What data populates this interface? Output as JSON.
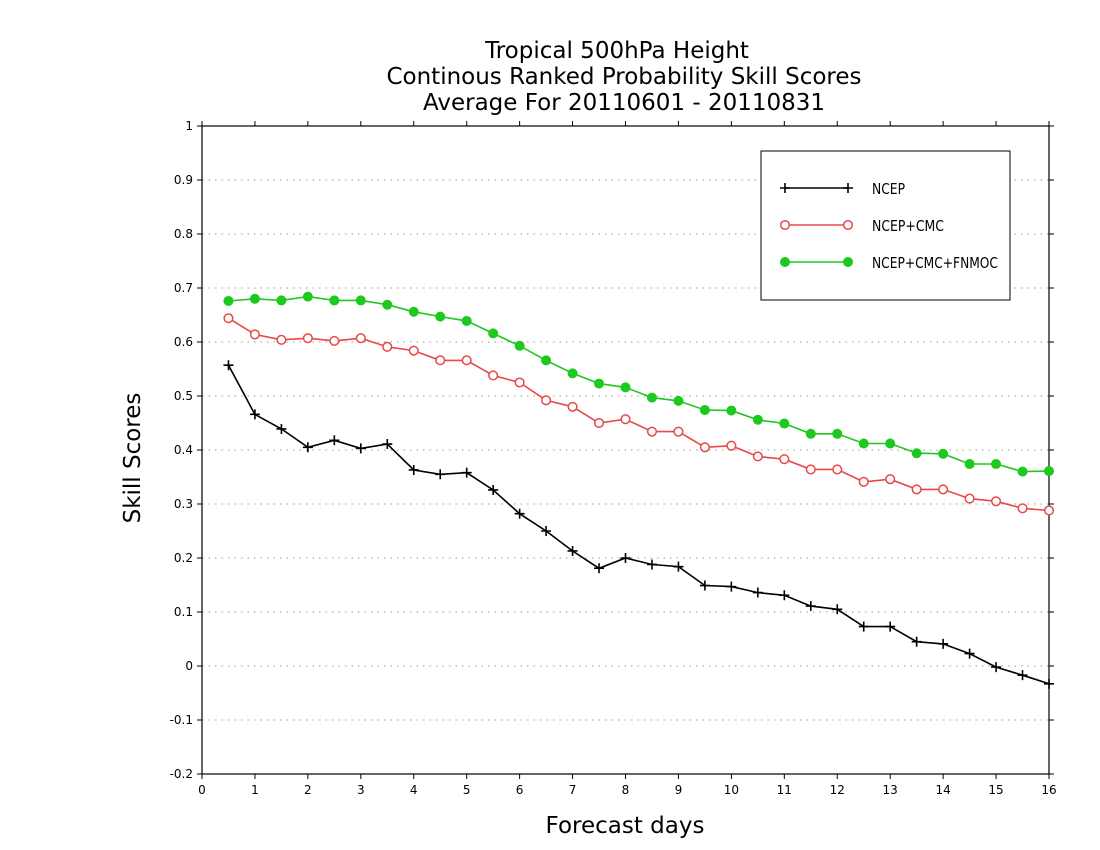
{
  "chart_data": {
    "type": "line",
    "title": [
      "Tropical 500hPa Height",
      "Continous Ranked Probability Skill Scores",
      "Average For 20110601 - 20110831"
    ],
    "xlabel": "Forecast days",
    "ylabel": "Skill Scores",
    "xlim": [
      0,
      16
    ],
    "ylim": [
      -0.2,
      1
    ],
    "xticks": [
      0,
      1,
      2,
      3,
      4,
      5,
      6,
      7,
      8,
      9,
      10,
      11,
      12,
      13,
      14,
      15,
      16
    ],
    "xtick_labels": [
      "0",
      "1",
      "2",
      "3",
      "4",
      "5",
      "6",
      "7",
      "8",
      "9",
      "10",
      "11",
      "12",
      "13",
      "14",
      "15",
      "16"
    ],
    "yticks": [
      -0.2,
      -0.1,
      0,
      0.1,
      0.2,
      0.3,
      0.4,
      0.5,
      0.6,
      0.7,
      0.8,
      0.9,
      1
    ],
    "ytick_labels": [
      "-0.2",
      "-0.1",
      "0",
      "0.1",
      "0.2",
      "0.3",
      "0.4",
      "0.5",
      "0.6",
      "0.7",
      "0.8",
      "0.9",
      "1"
    ],
    "grid": "horizontal dotted",
    "legend_position": "top-right",
    "x": [
      0.5,
      1,
      1.5,
      2,
      2.5,
      3,
      3.5,
      4,
      4.5,
      5,
      5.5,
      6,
      6.5,
      7,
      7.5,
      8,
      8.5,
      9,
      9.5,
      10,
      10.5,
      11,
      11.5,
      12,
      12.5,
      13,
      13.5,
      14,
      14.5,
      15,
      15.5,
      16
    ],
    "series": [
      {
        "name": "NCEP",
        "color": "#000000",
        "marker": "plus",
        "values": [
          0.557,
          0.466,
          0.439,
          0.405,
          0.418,
          0.403,
          0.411,
          0.363,
          0.355,
          0.358,
          0.326,
          0.282,
          0.25,
          0.213,
          0.181,
          0.2,
          0.188,
          0.184,
          0.149,
          0.147,
          0.136,
          0.131,
          0.111,
          0.105,
          0.073,
          0.073,
          0.045,
          0.041,
          0.023,
          -0.002,
          -0.017,
          -0.033
        ]
      },
      {
        "name": "NCEP+CMC",
        "color": "#e84848",
        "marker": "open-circle",
        "values": [
          0.644,
          0.614,
          0.604,
          0.607,
          0.602,
          0.607,
          0.591,
          0.584,
          0.566,
          0.566,
          0.538,
          0.525,
          0.492,
          0.48,
          0.45,
          0.457,
          0.434,
          0.434,
          0.405,
          0.408,
          0.388,
          0.383,
          0.364,
          0.364,
          0.341,
          0.346,
          0.327,
          0.327,
          0.31,
          0.305,
          0.292,
          0.288
        ]
      },
      {
        "name": "NCEP+CMC+FNMOC",
        "color": "#1ec81e",
        "marker": "filled-circle",
        "values": [
          0.676,
          0.68,
          0.677,
          0.684,
          0.677,
          0.677,
          0.669,
          0.656,
          0.647,
          0.639,
          0.616,
          0.593,
          0.566,
          0.542,
          0.523,
          0.516,
          0.497,
          0.491,
          0.474,
          0.473,
          0.456,
          0.449,
          0.43,
          0.43,
          0.412,
          0.412,
          0.394,
          0.393,
          0.374,
          0.374,
          0.36,
          0.361
        ]
      }
    ]
  }
}
